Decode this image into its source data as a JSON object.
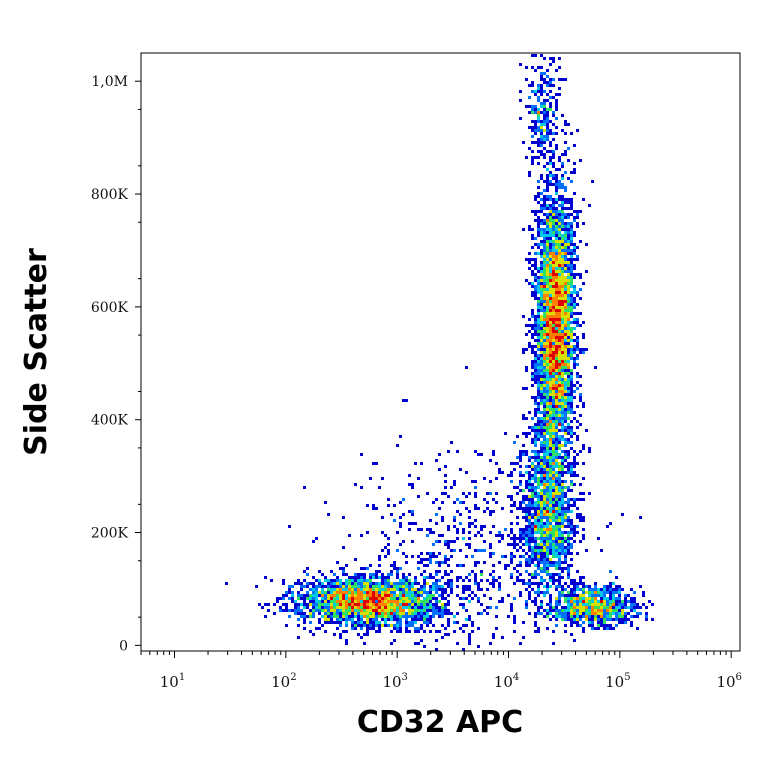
{
  "chart_data": {
    "type": "scatter",
    "plot_style": "flow cytometry density dot plot",
    "xlabel": "CD32 APC",
    "ylabel": "Side Scatter",
    "x_scale": "log",
    "xlim": [
      5,
      1200000
    ],
    "ylim": [
      -10000,
      1050000
    ],
    "x_ticks": [
      {
        "value": 10,
        "base": "10",
        "exp": "1"
      },
      {
        "value": 100,
        "base": "10",
        "exp": "2"
      },
      {
        "value": 1000,
        "base": "10",
        "exp": "3"
      },
      {
        "value": 10000,
        "base": "10",
        "exp": "4"
      },
      {
        "value": 100000,
        "base": "10",
        "exp": "5"
      },
      {
        "value": 1000000,
        "base": "10",
        "exp": "6"
      }
    ],
    "y_ticks": [
      {
        "value": 0,
        "label": "0"
      },
      {
        "value": 200000,
        "label": "200K"
      },
      {
        "value": 400000,
        "label": "400K"
      },
      {
        "value": 600000,
        "label": "600K"
      },
      {
        "value": 800000,
        "label": "800K"
      },
      {
        "value": 1000000,
        "label": "1,0M"
      }
    ],
    "density_colors": [
      "#0000d0",
      "#0070ff",
      "#00c8e8",
      "#30e060",
      "#d8e000",
      "#ff8000",
      "#e00000"
    ],
    "populations": [
      {
        "x_log10_center": 2.75,
        "x_log10_sd": 0.32,
        "y_center": 78000,
        "y_sd": 22000,
        "events": 2600
      },
      {
        "x_log10_center": 4.42,
        "x_log10_sd": 0.09,
        "y_center": 570000,
        "y_sd": 120000,
        "events": 4200
      },
      {
        "x_log10_center": 4.35,
        "x_log10_sd": 0.12,
        "y_center": 240000,
        "y_sd": 75000,
        "events": 1600
      },
      {
        "x_log10_center": 4.75,
        "x_log10_sd": 0.2,
        "y_center": 70000,
        "y_sd": 18000,
        "events": 900
      },
      {
        "x_log10_center": 3.6,
        "x_log10_sd": 0.5,
        "y_center": 150000,
        "y_sd": 90000,
        "events": 700
      },
      {
        "x_log10_center": 4.3,
        "x_log10_sd": 0.07,
        "y_center": 950000,
        "y_sd": 50000,
        "events": 250
      }
    ]
  }
}
